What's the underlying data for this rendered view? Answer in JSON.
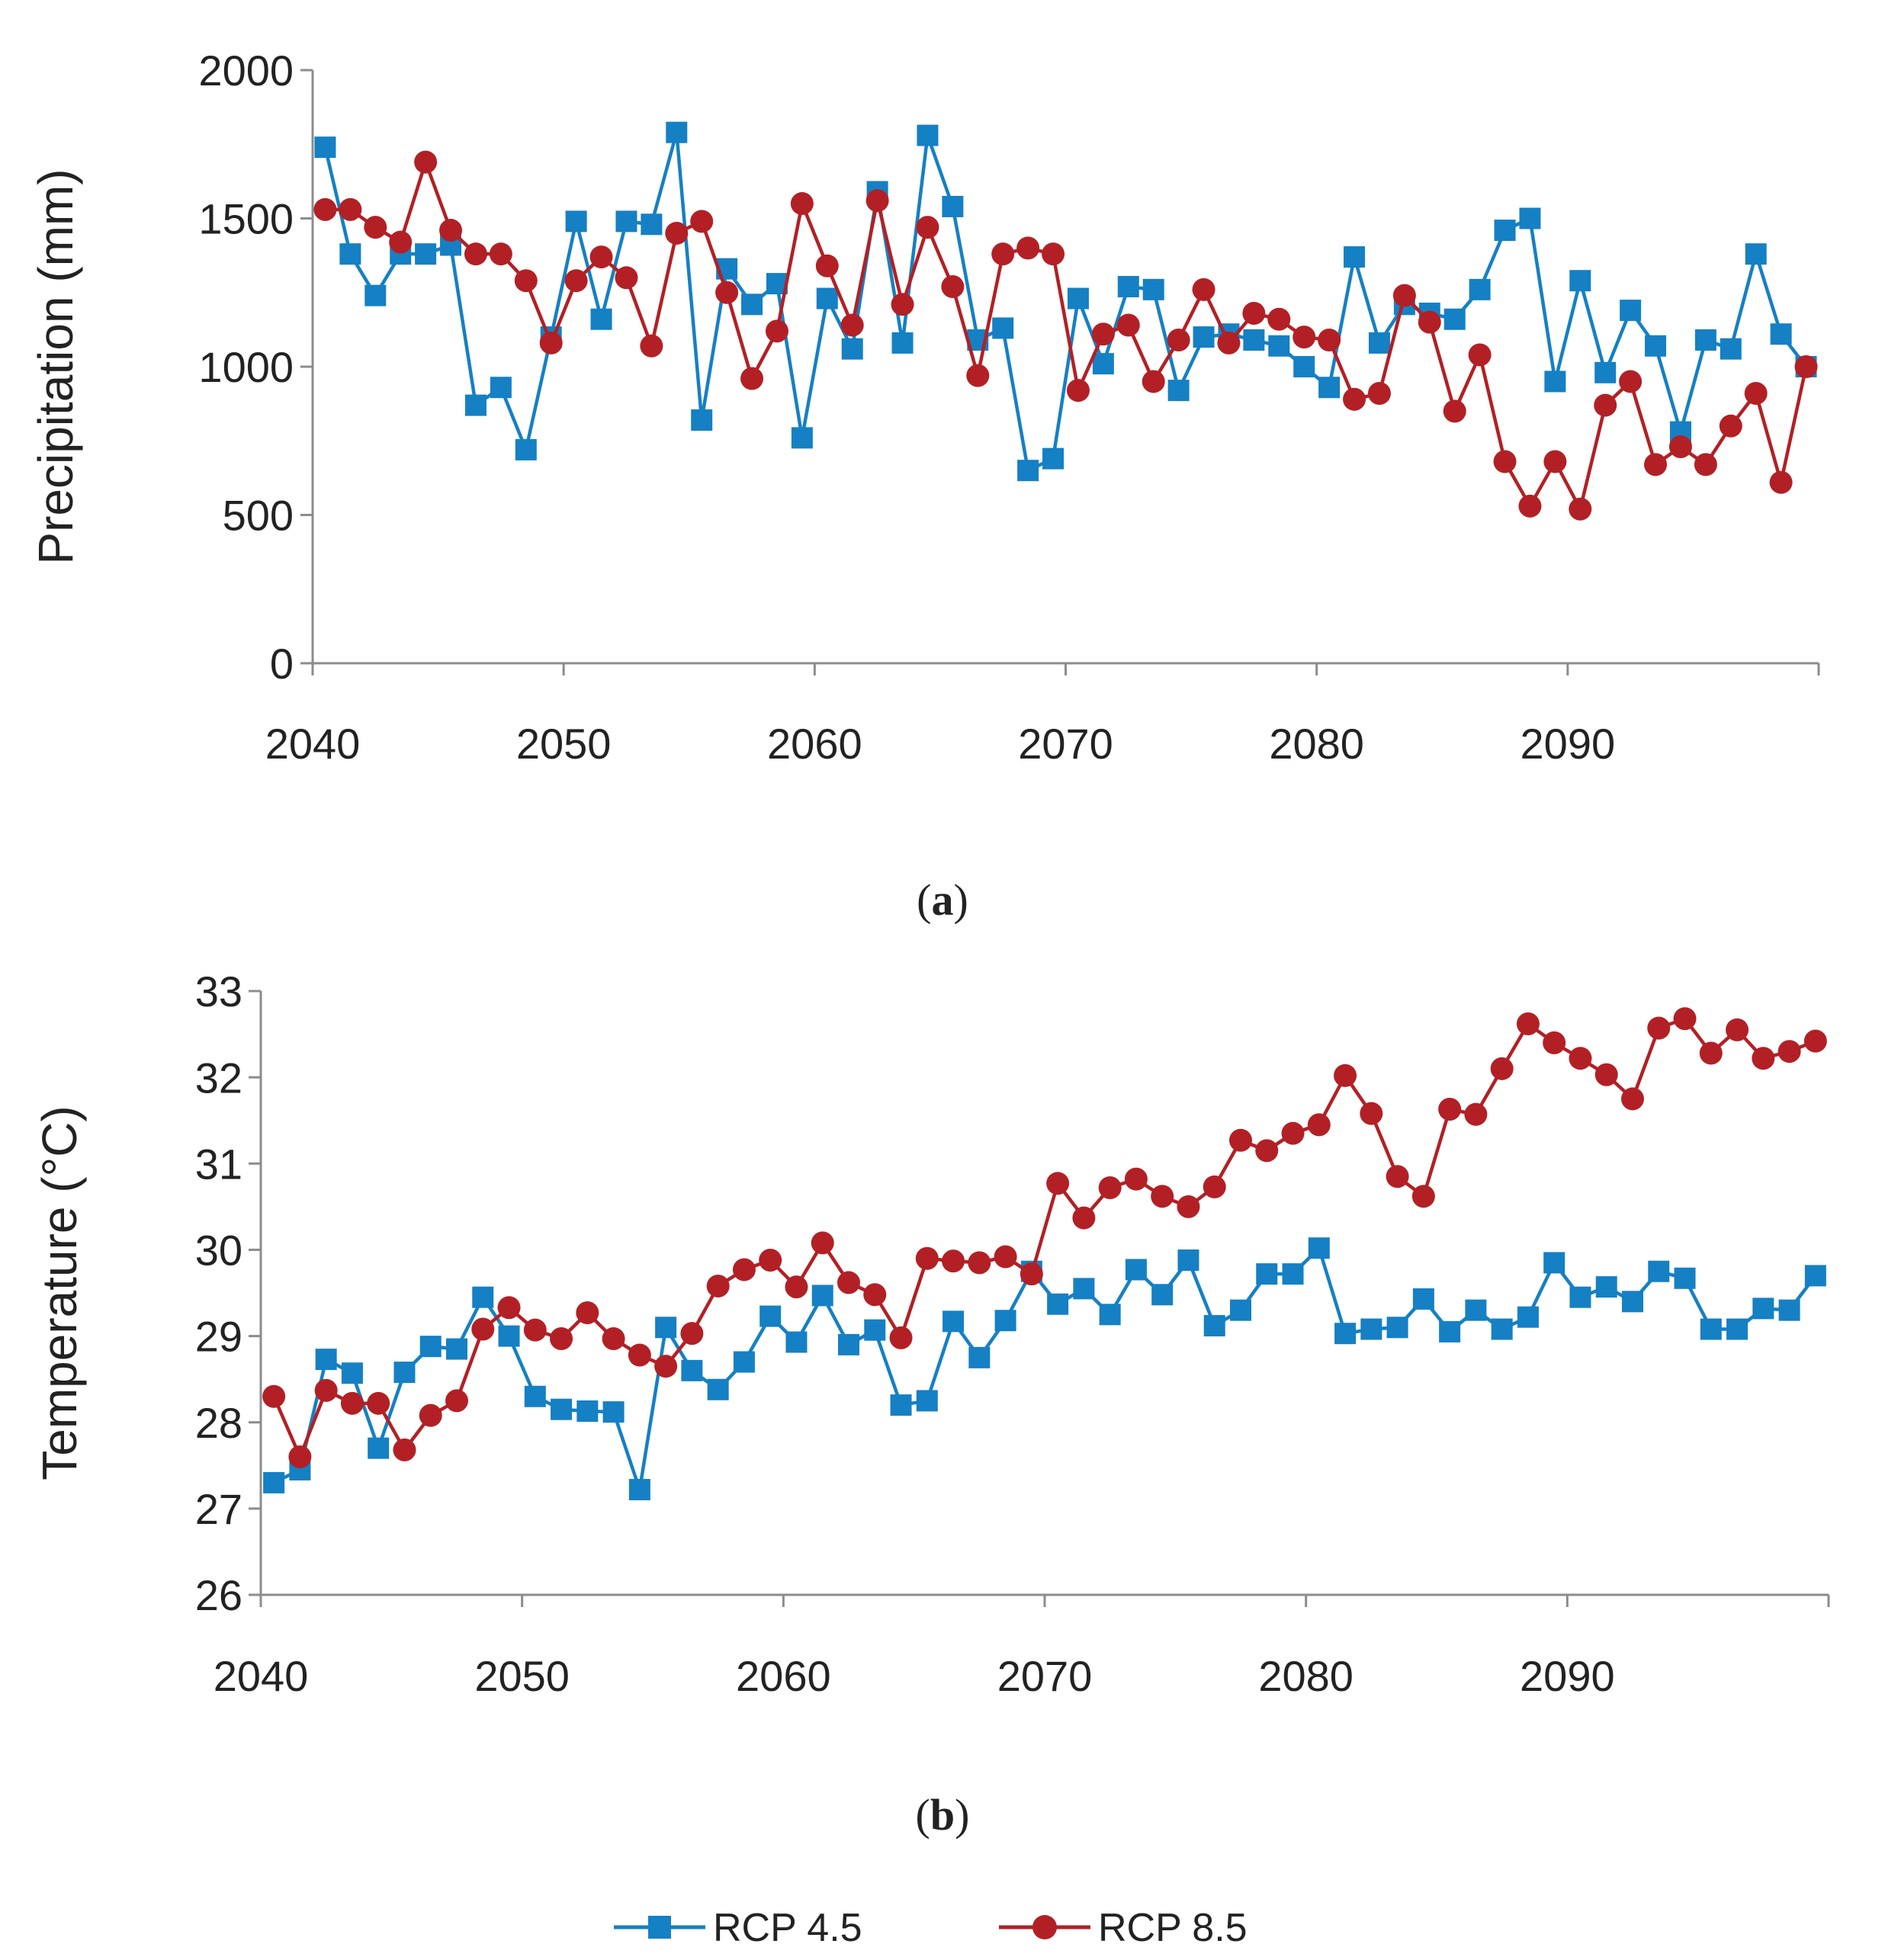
{
  "colors": {
    "rcp45": "#1580C4",
    "rcp85": "#B22025",
    "axis": "#8C8C8C",
    "text": "#222222"
  },
  "legend": {
    "placement": "bottom-center",
    "items": [
      {
        "series": "rcp45",
        "label": "RCP 4.5",
        "marker": "square"
      },
      {
        "series": "rcp85",
        "label": "RCP 8.5",
        "marker": "circle"
      }
    ]
  },
  "chart_data": [
    {
      "type": "line",
      "panel_label": "a",
      "title": "",
      "xlabel": "",
      "ylabel": "Precipitation (mm)",
      "xlim": [
        2040,
        2100
      ],
      "ylim": [
        0,
        2000
      ],
      "xticks": [
        2040,
        2050,
        2060,
        2070,
        2080,
        2090
      ],
      "yticks": [
        0,
        500,
        1000,
        1500,
        2000
      ],
      "grid": false,
      "x": [
        2040,
        2041,
        2042,
        2043,
        2044,
        2045,
        2046,
        2047,
        2048,
        2049,
        2050,
        2051,
        2052,
        2053,
        2054,
        2055,
        2056,
        2057,
        2058,
        2059,
        2060,
        2061,
        2062,
        2063,
        2064,
        2065,
        2066,
        2067,
        2068,
        2069,
        2070,
        2071,
        2072,
        2073,
        2074,
        2075,
        2076,
        2077,
        2078,
        2079,
        2080,
        2081,
        2082,
        2083,
        2084,
        2085,
        2086,
        2087,
        2088,
        2089,
        2090,
        2091,
        2092,
        2093,
        2094,
        2095,
        2096,
        2097,
        2098,
        2099
      ],
      "series": [
        {
          "name": "RCP 4.5",
          "key": "rcp45",
          "values": [
            1740,
            1380,
            1240,
            1380,
            1380,
            1410,
            870,
            930,
            720,
            1100,
            1490,
            1160,
            1490,
            1480,
            1790,
            820,
            1330,
            1210,
            1280,
            760,
            1230,
            1060,
            1590,
            1080,
            1780,
            1540,
            1090,
            1130,
            650,
            690,
            1230,
            1010,
            1270,
            1260,
            920,
            1100,
            1110,
            1090,
            1070,
            1000,
            930,
            1370,
            1080,
            1210,
            1180,
            1160,
            1260,
            1460,
            1500,
            950,
            1290,
            980,
            1190,
            1070,
            780,
            1090,
            1060,
            1380,
            1110,
            1000
          ]
        },
        {
          "name": "RCP 8.5",
          "key": "rcp85",
          "values": [
            1530,
            1530,
            1470,
            1420,
            1690,
            1460,
            1380,
            1380,
            1290,
            1080,
            1290,
            1370,
            1300,
            1070,
            1450,
            1490,
            1250,
            960,
            1120,
            1550,
            1340,
            1140,
            1560,
            1210,
            1470,
            1270,
            970,
            1380,
            1400,
            1380,
            920,
            1110,
            1140,
            950,
            1090,
            1260,
            1080,
            1180,
            1160,
            1100,
            1090,
            890,
            910,
            1240,
            1150,
            850,
            1040,
            680,
            530,
            680,
            520,
            870,
            950,
            670,
            730,
            670,
            800,
            910,
            610,
            1000
          ]
        }
      ]
    },
    {
      "type": "line",
      "panel_label": "b",
      "title": "",
      "xlabel": "",
      "ylabel": "Temperature (°C)",
      "xlim": [
        2040,
        2100
      ],
      "ylim": [
        26,
        33
      ],
      "xticks": [
        2040,
        2050,
        2060,
        2070,
        2080,
        2090
      ],
      "yticks": [
        26,
        27,
        28,
        29,
        30,
        31,
        32,
        33
      ],
      "grid": false,
      "x": [
        2040,
        2041,
        2042,
        2043,
        2044,
        2045,
        2046,
        2047,
        2048,
        2049,
        2050,
        2051,
        2052,
        2053,
        2054,
        2055,
        2056,
        2057,
        2058,
        2059,
        2060,
        2061,
        2062,
        2063,
        2064,
        2065,
        2066,
        2067,
        2068,
        2069,
        2070,
        2071,
        2072,
        2073,
        2074,
        2075,
        2076,
        2077,
        2078,
        2079,
        2080,
        2081,
        2082,
        2083,
        2084,
        2085,
        2086,
        2087,
        2088,
        2089,
        2090,
        2091,
        2092,
        2093,
        2094,
        2095,
        2096,
        2097,
        2098,
        2099
      ],
      "series": [
        {
          "name": "RCP 4.5",
          "key": "rcp45",
          "values": [
            27.3,
            27.45,
            28.73,
            28.57,
            27.7,
            28.58,
            28.88,
            28.85,
            29.45,
            29.0,
            28.3,
            28.15,
            28.13,
            28.12,
            27.22,
            29.1,
            28.6,
            28.38,
            28.7,
            29.23,
            28.93,
            29.47,
            28.9,
            29.07,
            28.2,
            28.25,
            29.17,
            28.75,
            29.18,
            29.75,
            29.37,
            29.55,
            29.25,
            29.77,
            29.48,
            29.88,
            29.12,
            29.3,
            29.72,
            29.72,
            30.02,
            29.03,
            29.08,
            29.1,
            29.43,
            29.05,
            29.3,
            29.08,
            29.22,
            29.85,
            29.45,
            29.57,
            29.4,
            29.75,
            29.67,
            29.08,
            29.08,
            29.32,
            29.3,
            29.7
          ]
        },
        {
          "name": "RCP 8.5",
          "key": "rcp85",
          "values": [
            28.3,
            27.6,
            28.37,
            28.22,
            28.22,
            27.68,
            28.08,
            28.25,
            29.08,
            29.33,
            29.07,
            28.97,
            29.27,
            28.97,
            28.78,
            28.65,
            29.03,
            29.58,
            29.77,
            29.88,
            29.57,
            30.08,
            29.62,
            29.48,
            28.98,
            29.9,
            29.87,
            29.85,
            29.92,
            29.72,
            30.77,
            30.37,
            30.72,
            30.82,
            30.62,
            30.5,
            30.73,
            31.27,
            31.15,
            31.35,
            31.45,
            32.02,
            31.58,
            30.85,
            30.62,
            31.63,
            31.57,
            32.1,
            32.62,
            32.4,
            32.22,
            32.03,
            31.75,
            32.57,
            32.68,
            32.28,
            32.55,
            32.22,
            32.3,
            32.42
          ]
        }
      ]
    }
  ]
}
